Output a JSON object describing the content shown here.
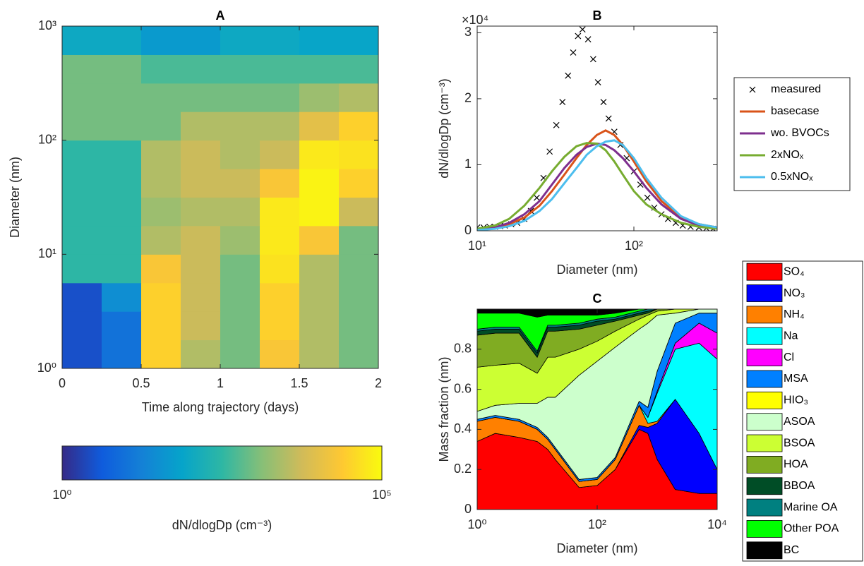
{
  "chart_data": [
    {
      "type": "heatmap",
      "title": "A",
      "xlabel": "Time along trajectory (days)",
      "ylabel": "Diameter (nm)",
      "xlim": [
        0,
        2
      ],
      "xticks": [
        0,
        0.5,
        1,
        1.5,
        2
      ],
      "ylim": [
        1,
        1000
      ],
      "ylog": true,
      "yticks": [
        {
          "value": 1,
          "label": "10⁰"
        },
        {
          "value": 10,
          "label": "10¹"
        },
        {
          "value": 100,
          "label": "10²"
        },
        {
          "value": 1000,
          "label": "10³"
        }
      ],
      "x_edges": [
        0,
        0.25,
        0.5,
        0.75,
        1,
        1.25,
        1.5,
        1.75,
        2
      ],
      "y_edges": [
        1,
        1.78,
        3.16,
        5.62,
        10,
        17.8,
        31.6,
        56.2,
        100,
        178,
        316,
        562,
        1000
      ],
      "z": [
        [
          3,
          10,
          30000,
          3000,
          1000,
          20000,
          3000,
          1000
        ],
        [
          3,
          10,
          30000,
          5000,
          1000,
          30000,
          3000,
          1000
        ],
        [
          3,
          30,
          30000,
          5000,
          1000,
          30000,
          3000,
          1000
        ],
        [
          300,
          300,
          20000,
          5000,
          1000,
          50000,
          3000,
          1000
        ],
        [
          300,
          300,
          3000,
          5000,
          2000,
          60000,
          20000,
          1000
        ],
        [
          300,
          300,
          2000,
          3000,
          3000,
          60000,
          80000,
          5000
        ],
        [
          300,
          300,
          3000,
          5000,
          5000,
          20000,
          80000,
          30000
        ],
        [
          300,
          300,
          3000,
          5000,
          3000,
          5000,
          60000,
          50000
        ],
        [
          1000,
          1000,
          1000,
          3000,
          3000,
          3000,
          10000,
          30000
        ],
        [
          1000,
          1000,
          1000,
          1000,
          1000,
          1000,
          2000,
          3000
        ],
        [
          1000,
          1000,
          500,
          500,
          500,
          500,
          500,
          500
        ],
        [
          100,
          100,
          50,
          50,
          100,
          100,
          80,
          80
        ]
      ],
      "colorbar": {
        "label": "dN/dlogDp (cm⁻³)",
        "zlim": [
          1,
          100000
        ],
        "log": true,
        "ticks": [
          {
            "value": 1,
            "label": "10⁰"
          },
          {
            "value": 100000,
            "label": "10⁵"
          }
        ]
      }
    },
    {
      "type": "line",
      "title": "B",
      "xlabel": "Diameter (nm)",
      "ylabel": "dN/dlogDp (cm⁻³)",
      "y_multiplier": "×10⁴",
      "xlim": [
        10,
        340
      ],
      "xlog": true,
      "xticks": [
        {
          "value": 10,
          "label": "10¹"
        },
        {
          "value": 100,
          "label": "10²"
        }
      ],
      "ylim": [
        0,
        3.1
      ],
      "yticks": [
        0,
        1,
        2,
        3
      ],
      "legend": "outside right",
      "x": [
        10,
        13,
        16,
        20,
        25,
        30,
        36,
        43,
        50,
        58,
        66,
        75,
        85,
        100,
        120,
        150,
        200,
        260,
        340
      ],
      "series": [
        {
          "name": "measured",
          "color": "#000000",
          "marker": "x",
          "x": [
            10,
            11,
            12,
            13,
            14,
            15,
            16.5,
            18,
            20,
            22,
            24,
            26.5,
            29,
            32,
            35,
            38,
            41,
            44,
            47,
            51,
            55,
            59,
            64,
            69,
            75,
            82,
            90,
            100,
            110,
            122,
            135,
            150,
            165,
            185,
            205,
            230,
            260,
            290,
            320
          ],
          "values": [
            0.05,
            0.05,
            0.06,
            0.06,
            0.07,
            0.08,
            0.1,
            0.12,
            0.18,
            0.3,
            0.5,
            0.8,
            1.2,
            1.6,
            1.95,
            2.35,
            2.7,
            2.95,
            3.05,
            2.9,
            2.6,
            2.25,
            1.95,
            1.7,
            1.5,
            1.3,
            1.1,
            0.9,
            0.7,
            0.5,
            0.35,
            0.25,
            0.18,
            0.12,
            0.08,
            0.06,
            0.05,
            0.04,
            0.03
          ]
        },
        {
          "name": "basecase",
          "color": "#d95319",
          "values": [
            0.02,
            0.05,
            0.1,
            0.2,
            0.38,
            0.6,
            0.85,
            1.1,
            1.3,
            1.45,
            1.52,
            1.45,
            1.3,
            1.05,
            0.75,
            0.45,
            0.2,
            0.1,
            0.05
          ]
        },
        {
          "name": "wo. BVOCs",
          "color": "#7e2f8e",
          "values": [
            0.02,
            0.05,
            0.12,
            0.25,
            0.45,
            0.7,
            0.95,
            1.15,
            1.27,
            1.32,
            1.3,
            1.22,
            1.1,
            0.9,
            0.65,
            0.4,
            0.18,
            0.08,
            0.04
          ]
        },
        {
          "name": "2xNOₓ",
          "color": "#77ac30",
          "values": [
            0.03,
            0.08,
            0.18,
            0.38,
            0.65,
            0.9,
            1.12,
            1.28,
            1.33,
            1.32,
            1.22,
            1.05,
            0.85,
            0.6,
            0.4,
            0.25,
            0.12,
            0.06,
            0.03
          ]
        },
        {
          "name": "0.5xNOₓ",
          "color": "#4dbeee",
          "values": [
            0.01,
            0.03,
            0.07,
            0.15,
            0.3,
            0.48,
            0.72,
            0.95,
            1.15,
            1.28,
            1.35,
            1.37,
            1.3,
            1.1,
            0.8,
            0.5,
            0.22,
            0.1,
            0.05
          ]
        }
      ]
    },
    {
      "type": "stacked_area",
      "title": "C",
      "xlabel": "Diameter (nm)",
      "ylabel": "Mass fraction (nm)",
      "xlim": [
        1,
        10000
      ],
      "xlog": true,
      "xticks": [
        {
          "value": 1,
          "label": "10⁰"
        },
        {
          "value": 100,
          "label": "10²"
        },
        {
          "value": 10000,
          "label": "10⁴"
        }
      ],
      "ylim": [
        0,
        1
      ],
      "yticks": [
        0,
        0.2,
        0.4,
        0.6,
        0.8
      ],
      "legend": "outside right",
      "x": [
        1,
        2,
        5,
        10,
        15,
        20,
        50,
        100,
        200,
        500,
        700,
        1000,
        2000,
        5000,
        10000
      ],
      "series": [
        {
          "name": "SO₄",
          "color": "#ff0000",
          "values": [
            0.34,
            0.38,
            0.36,
            0.34,
            0.3,
            0.25,
            0.11,
            0.12,
            0.2,
            0.4,
            0.38,
            0.25,
            0.1,
            0.08,
            0.08
          ]
        },
        {
          "name": "NO₃",
          "color": "#0000ff",
          "values": [
            0,
            0,
            0,
            0,
            0,
            0,
            0,
            0,
            0,
            0.02,
            0.03,
            0.18,
            0.45,
            0.3,
            0.12
          ]
        },
        {
          "name": "NH₄",
          "color": "#ff8000",
          "values": [
            0.1,
            0.08,
            0.08,
            0.06,
            0.05,
            0.05,
            0.03,
            0.03,
            0.05,
            0.1,
            0.02,
            0.01,
            0,
            0,
            0
          ]
        },
        {
          "name": "Na",
          "color": "#00ffff",
          "values": [
            0,
            0,
            0,
            0,
            0,
            0,
            0,
            0,
            0,
            0,
            0.03,
            0.14,
            0.25,
            0.45,
            0.55
          ]
        },
        {
          "name": "Cl",
          "color": "#ff00ff",
          "values": [
            0,
            0,
            0,
            0,
            0,
            0,
            0,
            0,
            0,
            0,
            0,
            0.01,
            0.03,
            0.1,
            0.13
          ]
        },
        {
          "name": "MSA",
          "color": "#0080ff",
          "values": [
            0.01,
            0.01,
            0.01,
            0.01,
            0.01,
            0.01,
            0.01,
            0.01,
            0.01,
            0.02,
            0.05,
            0.1,
            0.1,
            0.05,
            0.1
          ]
        },
        {
          "name": "HIO₃",
          "color": "#ffff00",
          "values": [
            0,
            0,
            0,
            0,
            0,
            0,
            0,
            0,
            0,
            0,
            0,
            0,
            0,
            0,
            0
          ]
        },
        {
          "name": "ASOA",
          "color": "#ccffcc",
          "values": [
            0.04,
            0.05,
            0.08,
            0.12,
            0.2,
            0.25,
            0.52,
            0.58,
            0.55,
            0.36,
            0.42,
            0.28,
            0.05,
            0.02,
            0.02
          ]
        },
        {
          "name": "BSOA",
          "color": "#ccff33",
          "values": [
            0.22,
            0.2,
            0.2,
            0.15,
            0.2,
            0.2,
            0.13,
            0.1,
            0.08,
            0.05,
            0.04,
            0.02,
            0.02,
            0,
            0
          ]
        },
        {
          "name": "HOA",
          "color": "#80ac22",
          "values": [
            0.16,
            0.16,
            0.15,
            0.08,
            0.13,
            0.13,
            0.1,
            0.08,
            0.05,
            0.02,
            0.01,
            0.01,
            0,
            0,
            0
          ]
        },
        {
          "name": "BBOA",
          "color": "#004d26",
          "values": [
            0.02,
            0.02,
            0.02,
            0.02,
            0.02,
            0.02,
            0.02,
            0.02,
            0.01,
            0.01,
            0.01,
            0,
            0,
            0,
            0
          ]
        },
        {
          "name": "Marine OA",
          "color": "#008080",
          "values": [
            0.01,
            0.01,
            0.01,
            0.01,
            0.01,
            0.01,
            0.01,
            0.01,
            0.01,
            0.01,
            0.01,
            0,
            0,
            0,
            0
          ]
        },
        {
          "name": "Other POA",
          "color": "#00ff00",
          "values": [
            0.08,
            0.07,
            0.07,
            0.17,
            0.05,
            0.05,
            0.04,
            0.02,
            0.02,
            0.01,
            0,
            0,
            0,
            0,
            0
          ]
        },
        {
          "name": "BC",
          "color": "#000000",
          "values": [
            0.02,
            0.02,
            0.02,
            0.04,
            0.03,
            0.03,
            0.03,
            0.03,
            0.02,
            0,
            0,
            0,
            0,
            0,
            0
          ]
        }
      ]
    }
  ]
}
